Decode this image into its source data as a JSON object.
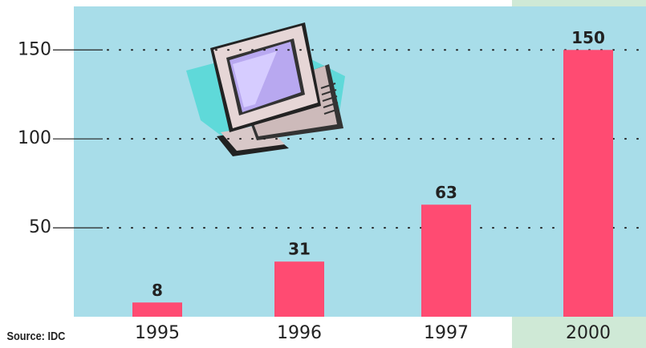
{
  "chart_data": {
    "type": "bar",
    "categories": [
      "1995",
      "1996",
      "1997",
      "2000"
    ],
    "values": [
      8,
      31,
      63,
      150
    ],
    "color": "#ff4b72",
    "ylim": [
      0,
      165
    ],
    "yticks": [
      50,
      100,
      150
    ],
    "grid": true,
    "source": "Source: IDC"
  }
}
